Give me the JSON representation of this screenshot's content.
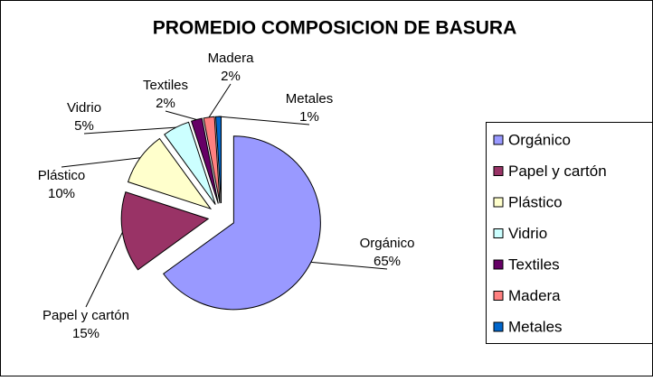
{
  "chart_data": {
    "type": "pie",
    "title": "PROMEDIO COMPOSICION DE BASURA",
    "categories": [
      "Orgánico",
      "Papel y cartón",
      "Plástico",
      "Vidrio",
      "Textiles",
      "Madera",
      "Metales"
    ],
    "values": [
      65,
      15,
      10,
      5,
      2,
      2,
      1
    ],
    "value_labels": [
      "65%",
      "15%",
      "10%",
      "5%",
      "2%",
      "2%",
      "1%"
    ],
    "colors": [
      "#9999ff",
      "#993366",
      "#ffffcc",
      "#ccffff",
      "#660066",
      "#ff8080",
      "#0066cc"
    ],
    "legend": "right"
  }
}
